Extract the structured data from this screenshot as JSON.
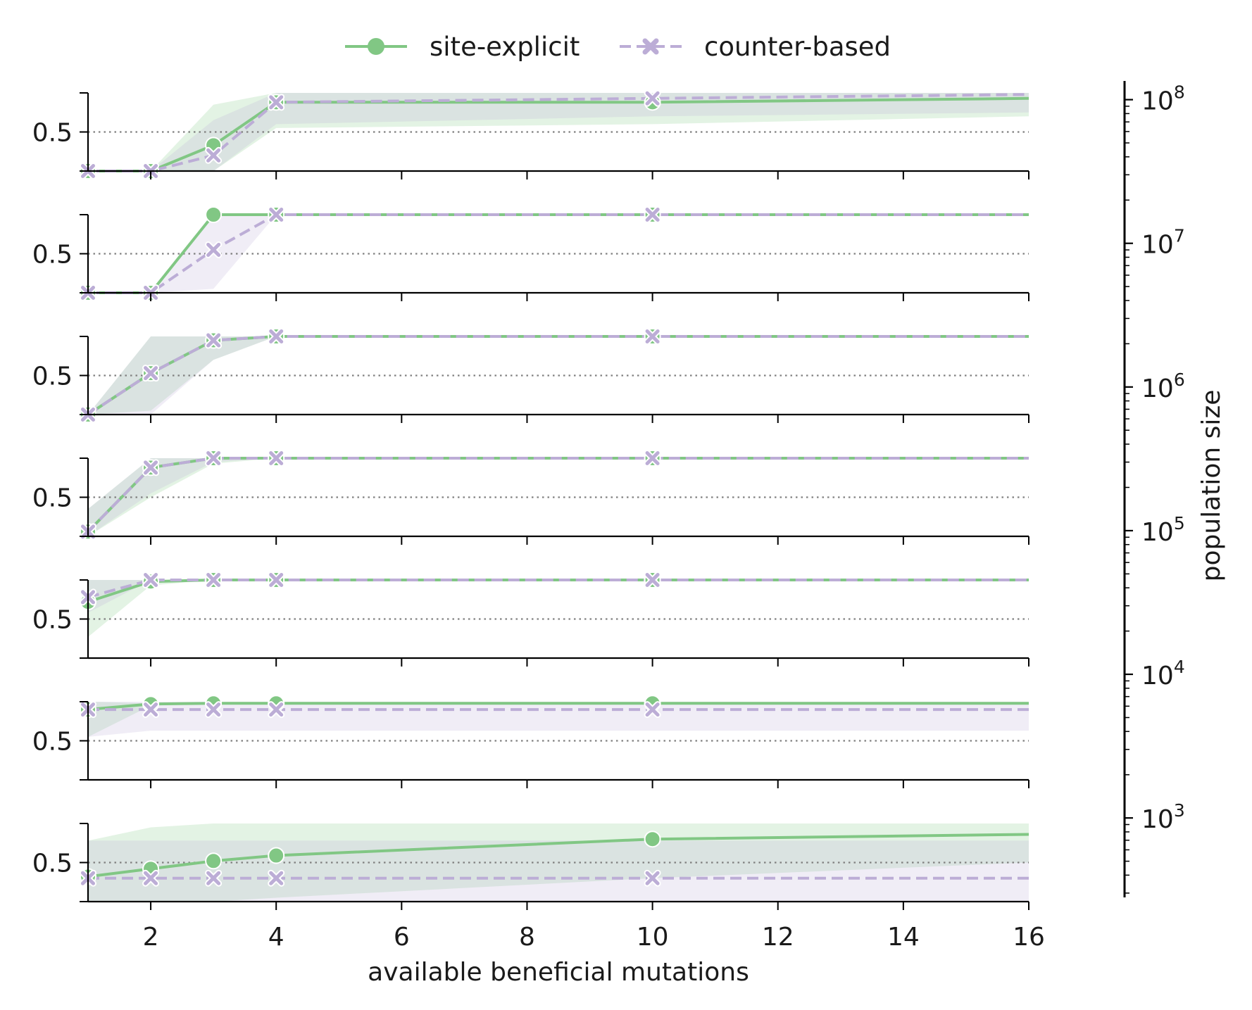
{
  "chart_data": {
    "type": "line",
    "legend_position": "top-center",
    "legend": [
      {
        "label": "site-explicit",
        "color": "#81c784",
        "marker": "circle",
        "linestyle": "solid"
      },
      {
        "label": "counter-based",
        "color": "#bcadd6",
        "marker": "x",
        "linestyle": "dashed"
      }
    ],
    "xlabel": "available beneficial mutations",
    "xlim": [
      1,
      16
    ],
    "xticks": [
      2,
      4,
      6,
      8,
      10,
      12,
      14,
      16
    ],
    "xtick_labels": [
      "2",
      "4",
      "6",
      "8",
      "10",
      "12",
      "14",
      "16"
    ],
    "panel_ylim": [
      0,
      1
    ],
    "panel_ytick_label": "0.5",
    "reference_line": 0.5,
    "colorbar": {
      "label": "population size",
      "scale": "log",
      "ticks": [
        {
          "base": "10",
          "exp": "3"
        },
        {
          "base": "10",
          "exp": "4"
        },
        {
          "base": "10",
          "exp": "5"
        },
        {
          "base": "10",
          "exp": "6"
        },
        {
          "base": "10",
          "exp": "7"
        },
        {
          "base": "10",
          "exp": "8"
        }
      ]
    },
    "panels": [
      {
        "series": [
          {
            "name": "site-explicit",
            "x": [
              1,
              2,
              3,
              4,
              10,
              16
            ],
            "y": [
              0.0,
              0.0,
              0.33,
              0.88,
              0.88,
              0.93
            ],
            "lower": [
              0.0,
              0.0,
              0.0,
              0.55,
              0.6,
              0.7
            ],
            "upper": [
              0.0,
              0.0,
              0.85,
              1.0,
              1.0,
              1.0
            ]
          },
          {
            "name": "counter-based",
            "x": [
              1,
              2,
              3,
              4,
              10,
              16
            ],
            "y": [
              0.0,
              0.0,
              0.2,
              0.88,
              0.93,
              0.98
            ],
            "lower": [
              0.0,
              0.0,
              0.0,
              0.6,
              0.7,
              0.75
            ],
            "upper": [
              0.0,
              0.0,
              0.65,
              1.0,
              1.0,
              1.0
            ]
          }
        ]
      },
      {
        "series": [
          {
            "name": "site-explicit",
            "x": [
              1,
              2,
              3,
              4,
              10,
              16
            ],
            "y": [
              0.0,
              0.0,
              1.0,
              1.0,
              1.0,
              1.0
            ],
            "lower": [
              0.0,
              0.0,
              1.0,
              1.0,
              1.0,
              1.0
            ],
            "upper": [
              0.0,
              0.0,
              1.0,
              1.0,
              1.0,
              1.0
            ]
          },
          {
            "name": "counter-based",
            "x": [
              1,
              2,
              3,
              4,
              10,
              16
            ],
            "y": [
              0.0,
              0.0,
              0.55,
              1.0,
              1.0,
              1.0
            ],
            "lower": [
              0.0,
              0.0,
              0.05,
              1.0,
              1.0,
              1.0
            ],
            "upper": [
              0.0,
              0.0,
              1.0,
              1.0,
              1.0,
              1.0
            ]
          }
        ]
      },
      {
        "series": [
          {
            "name": "site-explicit",
            "x": [
              1,
              2,
              3,
              4,
              10,
              16
            ],
            "y": [
              0.0,
              0.53,
              0.95,
              1.0,
              1.0,
              1.0
            ],
            "lower": [
              0.0,
              0.05,
              0.7,
              1.0,
              1.0,
              1.0
            ],
            "upper": [
              0.0,
              1.0,
              1.0,
              1.0,
              1.0,
              1.0
            ]
          },
          {
            "name": "counter-based",
            "x": [
              1,
              2,
              3,
              4,
              10,
              16
            ],
            "y": [
              0.0,
              0.53,
              0.95,
              1.0,
              1.0,
              1.0
            ],
            "lower": [
              0.0,
              0.0,
              0.7,
              1.0,
              1.0,
              1.0
            ],
            "upper": [
              0.0,
              1.0,
              1.0,
              1.0,
              1.0,
              1.0
            ]
          }
        ]
      },
      {
        "series": [
          {
            "name": "site-explicit",
            "x": [
              1,
              2,
              3,
              4,
              10,
              16
            ],
            "y": [
              0.06,
              0.88,
              1.0,
              1.0,
              1.0,
              1.0
            ],
            "lower": [
              0.0,
              0.5,
              0.93,
              1.0,
              1.0,
              1.0
            ],
            "upper": [
              0.35,
              1.0,
              1.0,
              1.0,
              1.0,
              1.0
            ]
          },
          {
            "name": "counter-based",
            "x": [
              1,
              2,
              3,
              4,
              10,
              16
            ],
            "y": [
              0.06,
              0.88,
              1.0,
              1.0,
              1.0,
              1.0
            ],
            "lower": [
              0.0,
              0.55,
              0.95,
              1.0,
              1.0,
              1.0
            ],
            "upper": [
              0.35,
              1.0,
              1.0,
              1.0,
              1.0,
              1.0
            ]
          }
        ]
      },
      {
        "series": [
          {
            "name": "site-explicit",
            "x": [
              1,
              2,
              3,
              4,
              10,
              16
            ],
            "y": [
              0.72,
              0.98,
              1.0,
              1.0,
              1.0,
              1.0
            ],
            "lower": [
              0.27,
              0.93,
              1.0,
              1.0,
              1.0,
              1.0
            ],
            "upper": [
              1.0,
              1.0,
              1.0,
              1.0,
              1.0,
              1.0
            ]
          },
          {
            "name": "counter-based",
            "x": [
              1,
              2,
              3,
              4,
              10,
              16
            ],
            "y": [
              0.78,
              1.0,
              1.0,
              1.0,
              1.0,
              1.0
            ],
            "lower": [
              0.58,
              1.0,
              1.0,
              1.0,
              1.0,
              1.0
            ],
            "upper": [
              1.0,
              1.0,
              1.0,
              1.0,
              1.0,
              1.0
            ]
          }
        ]
      },
      {
        "series": [
          {
            "name": "site-explicit",
            "x": [
              1,
              2,
              3,
              4,
              10,
              16
            ],
            "y": [
              0.9,
              0.97,
              0.98,
              0.98,
              0.98,
              0.98
            ],
            "lower": [
              0.55,
              0.95,
              0.98,
              0.98,
              0.98,
              0.98
            ],
            "upper": [
              1.0,
              0.98,
              0.98,
              0.98,
              0.98,
              0.98
            ]
          },
          {
            "name": "counter-based",
            "x": [
              1,
              2,
              3,
              4,
              10,
              16
            ],
            "y": [
              0.9,
              0.9,
              0.9,
              0.9,
              0.9,
              0.9
            ],
            "lower": [
              0.55,
              0.63,
              0.63,
              0.63,
              0.63,
              0.63
            ],
            "upper": [
              1.0,
              1.0,
              1.0,
              1.0,
              1.0,
              1.0
            ]
          }
        ]
      },
      {
        "series": [
          {
            "name": "site-explicit",
            "x": [
              1,
              2,
              3,
              4,
              10,
              16
            ],
            "y": [
              0.32,
              0.42,
              0.52,
              0.59,
              0.8,
              0.86
            ],
            "lower": [
              0.0,
              0.0,
              0.0,
              0.05,
              0.3,
              0.5
            ],
            "upper": [
              0.78,
              0.95,
              1.0,
              1.0,
              1.0,
              1.0
            ]
          },
          {
            "name": "counter-based",
            "x": [
              1,
              2,
              3,
              4,
              10,
              16
            ],
            "y": [
              0.3,
              0.3,
              0.3,
              0.3,
              0.3,
              0.3
            ],
            "lower": [
              0.0,
              0.0,
              0.0,
              0.0,
              0.0,
              0.0
            ],
            "upper": [
              0.78,
              0.78,
              0.78,
              0.78,
              0.78,
              0.78
            ]
          }
        ]
      }
    ]
  }
}
